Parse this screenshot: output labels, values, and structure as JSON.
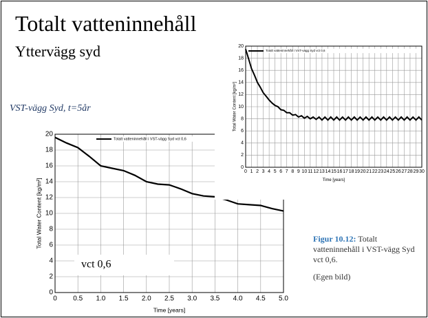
{
  "slide": {
    "title": "Totalt vatteninnehåll",
    "subtitle": "Yttervägg syd",
    "section_label": "VST-vägg Syd, t=5år",
    "caption_label": "Figur 10.12:",
    "caption_text": "Totalt vatteninnehåll i VST-vägg Syd vct 0,6.",
    "source": "(Egen bild)"
  },
  "chart_data": [
    {
      "type": "line",
      "x_label": "Time [years]",
      "y_label": "Total Water Content [kg/m²]",
      "annotation": "vct 0,6",
      "x": [
        0,
        0.25,
        0.5,
        0.75,
        1,
        1.25,
        1.5,
        1.75,
        2,
        2.25,
        2.5,
        2.75,
        3,
        3.25,
        3.5,
        3.75,
        4,
        4.25,
        4.5,
        4.75,
        5
      ],
      "series": [
        {
          "name": "Totalt vatteninnehåll i VST-vägg Syd vct 0,6",
          "color": "#000000",
          "values": [
            19.6,
            18.9,
            18.3,
            17.2,
            16.0,
            15.7,
            15.4,
            14.8,
            14.0,
            13.7,
            13.6,
            13.1,
            12.5,
            12.2,
            12.1,
            11.7,
            11.2,
            11.1,
            11.0,
            10.6,
            10.3
          ]
        }
      ],
      "xlim": [
        0,
        5
      ],
      "ylim": [
        0,
        20
      ],
      "xticks": [
        0,
        0.5,
        {
          "value": 1,
          "label": "1.0"
        },
        1.5,
        {
          "value": 2,
          "label": "2.0"
        },
        2.5,
        {
          "value": 3,
          "label": "3.0"
        },
        3.5,
        {
          "value": 4,
          "label": "4.0"
        },
        4.5,
        {
          "value": 5,
          "label": "5.0"
        }
      ],
      "yticks": [
        0,
        2,
        4,
        6,
        8,
        10,
        12,
        14,
        16,
        18,
        20
      ],
      "grid": true
    },
    {
      "type": "line",
      "x_label": "Time [years]",
      "y_label": "Total Water Content [kg/m²]",
      "x": [
        0,
        0.5,
        1,
        1.5,
        2,
        2.5,
        3,
        3.5,
        4,
        4.5,
        5,
        5.5,
        6,
        6.5,
        7,
        7.5,
        8,
        8.5,
        9,
        9.5,
        10,
        10.5,
        11,
        11.5,
        12,
        12.5,
        13,
        13.5,
        14,
        14.5,
        15,
        15.5,
        16,
        16.5,
        17,
        17.5,
        18,
        18.5,
        19,
        19.5,
        20,
        20.5,
        21,
        21.5,
        22,
        22.5,
        23,
        23.5,
        24,
        24.5,
        25,
        25.5,
        26,
        26.5,
        27,
        27.5,
        28,
        28.5,
        29,
        29.5,
        30
      ],
      "series": [
        {
          "name": "Totalt vatteninnehåll i VST-vägg Syd vct 0,6",
          "color": "#000000",
          "values": [
            19.5,
            17.9,
            16.3,
            15.2,
            14.0,
            13.2,
            12.3,
            11.7,
            11.1,
            10.6,
            10.2,
            10.0,
            9.5,
            9.4,
            9.0,
            9.0,
            8.6,
            8.7,
            8.3,
            8.5,
            8.1,
            8.4,
            8.0,
            8.3,
            7.9,
            8.3,
            7.8,
            8.3,
            7.8,
            8.3,
            7.8,
            8.3,
            7.8,
            8.3,
            7.8,
            8.3,
            7.8,
            8.3,
            7.8,
            8.3,
            7.8,
            8.3,
            7.8,
            8.3,
            7.8,
            8.3,
            7.8,
            8.3,
            7.8,
            8.3,
            7.8,
            8.3,
            7.8,
            8.3,
            7.8,
            8.3,
            7.8,
            8.3,
            7.8,
            8.3,
            7.8
          ]
        }
      ],
      "xlim": [
        0,
        30
      ],
      "ylim": [
        0,
        20
      ],
      "xticks": [
        0,
        1,
        2,
        3,
        4,
        5,
        6,
        7,
        8,
        9,
        10,
        11,
        12,
        13,
        14,
        15,
        16,
        17,
        18,
        19,
        20,
        21,
        22,
        23,
        24,
        25,
        26,
        27,
        28,
        29,
        30
      ],
      "yticks": [
        0,
        2,
        4,
        6,
        8,
        10,
        12,
        14,
        16,
        18,
        20
      ],
      "grid": true
    }
  ]
}
